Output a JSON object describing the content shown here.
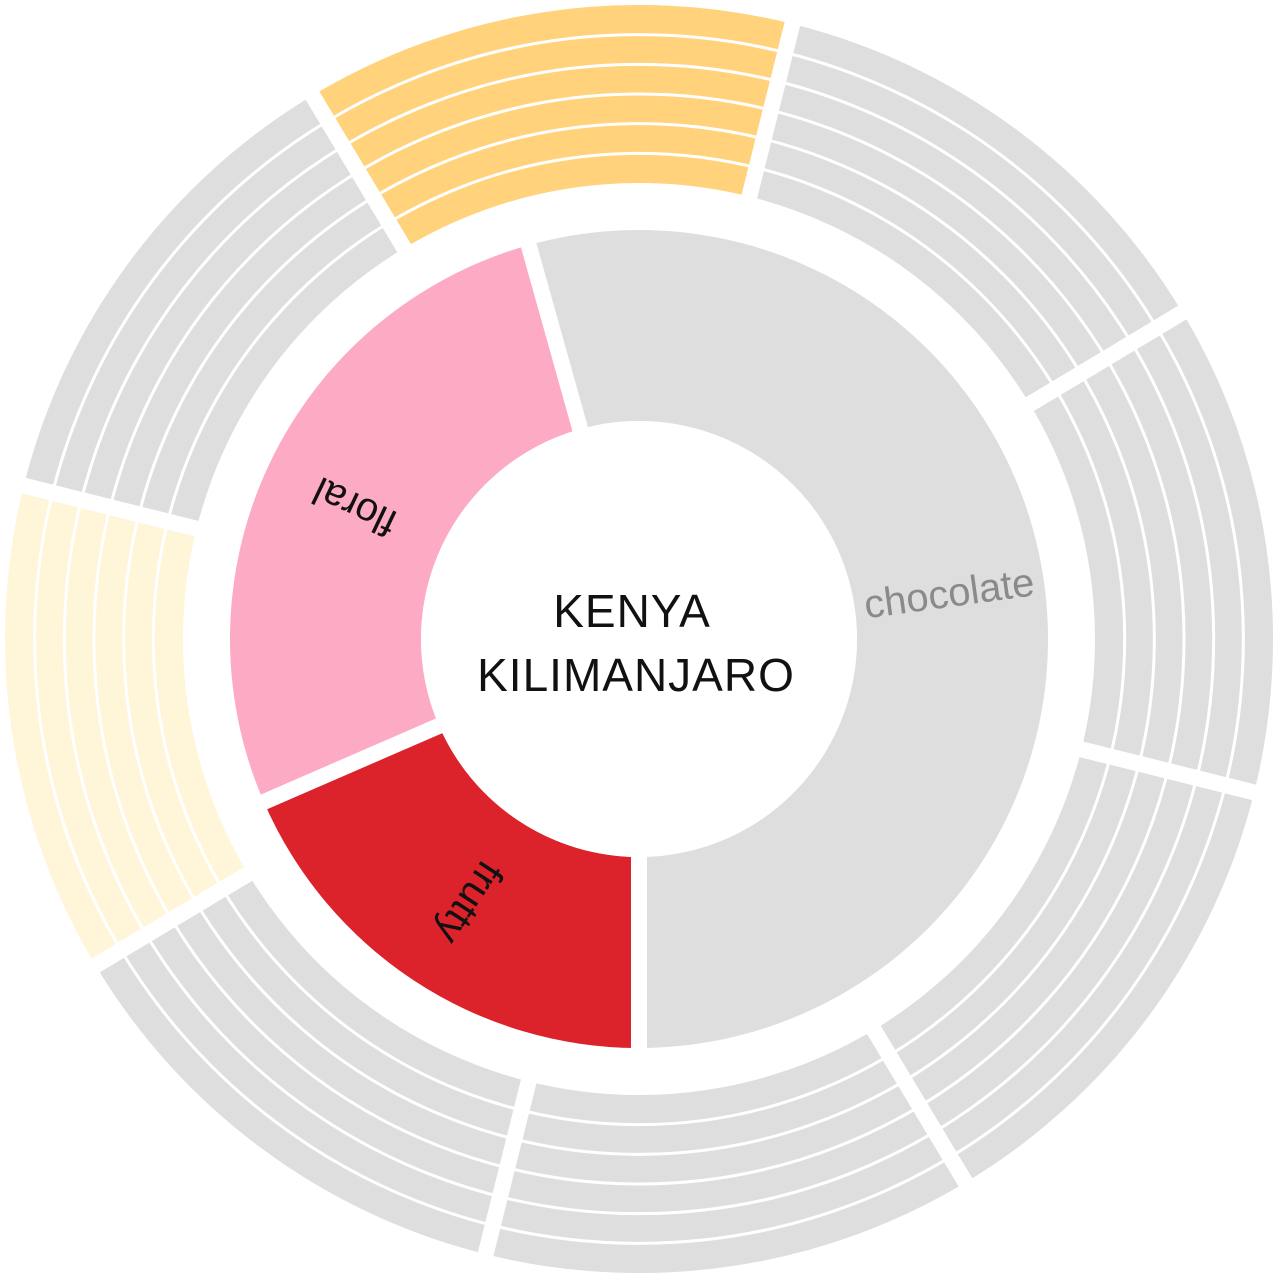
{
  "title_lines": [
    "KENYA",
    "KILIMANJARO"
  ],
  "colors": {
    "inactive": "#dedede",
    "background": "#ffffff",
    "center_text": "#111111"
  },
  "inner_ring": [
    {
      "label": "chocolate",
      "color": "#dedede",
      "label_color": "#8a8a8a",
      "value": 50
    },
    {
      "label": "floral",
      "color": "#fdaac4",
      "label_color": "#111111",
      "value": 25
    },
    {
      "label": "frutty",
      "color": "#dc222a",
      "label_color": "#111111",
      "value": 17
    }
  ],
  "outer_ring": {
    "sub_bands": 6,
    "segments": [
      {
        "color": "#dedede"
      },
      {
        "color": "#dedede"
      },
      {
        "color": "#dedede"
      },
      {
        "color": "#dedede"
      },
      {
        "color": "#dedede"
      },
      {
        "color": "#fff5d9"
      },
      {
        "color": "#dedede"
      },
      {
        "color": "#ffd27b"
      }
    ]
  }
}
